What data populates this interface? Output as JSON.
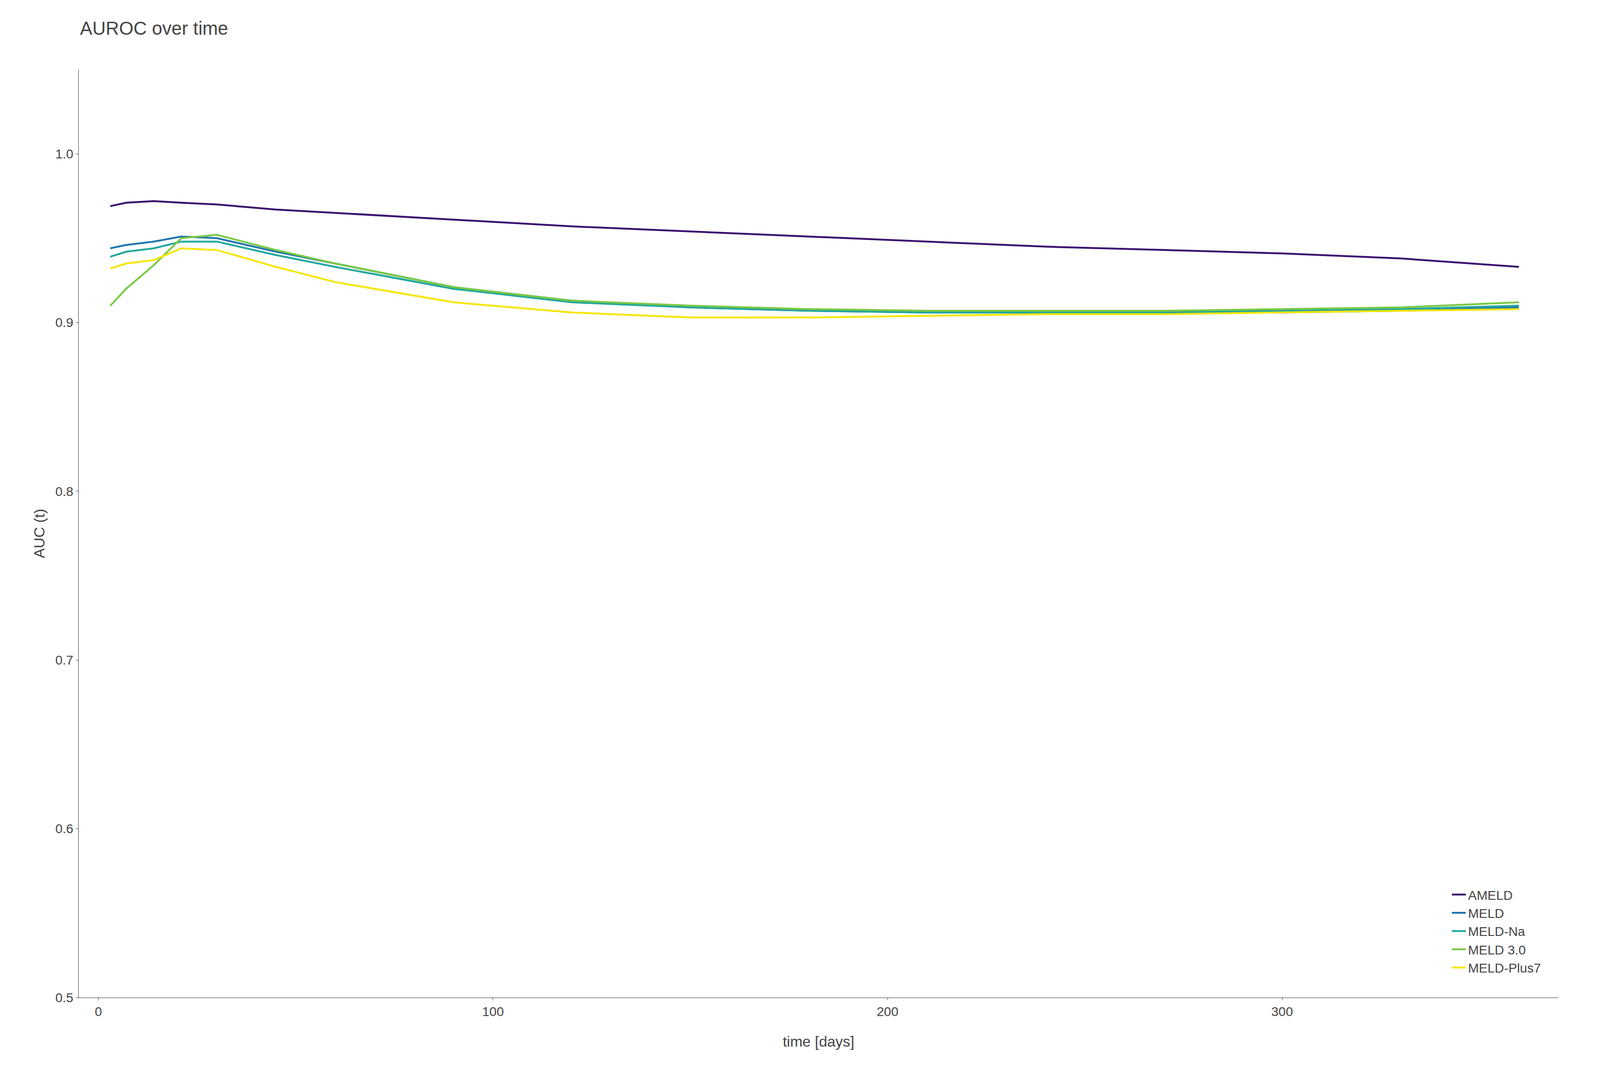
{
  "chart_data": {
    "type": "line",
    "title": "AUROC over time",
    "xlabel": "time [days]",
    "ylabel": "AUC (t)",
    "xlim": [
      -5,
      370
    ],
    "ylim": [
      0.5,
      1.05
    ],
    "xticks": [
      0,
      100,
      200,
      300
    ],
    "yticks": [
      0.5,
      0.6,
      0.7,
      0.8,
      0.9,
      {
        "value": 1.0,
        "label": "1.0"
      }
    ],
    "grid": false,
    "legend": "lower right",
    "x": [
      3,
      7,
      14,
      21,
      30,
      45,
      60,
      90,
      120,
      150,
      180,
      210,
      240,
      270,
      300,
      330,
      360
    ],
    "series": [
      {
        "name": "AMELD",
        "color": "#3b0f6f",
        "values": [
          0.969,
          0.971,
          0.972,
          0.971,
          0.97,
          0.967,
          0.965,
          0.961,
          0.957,
          0.954,
          0.951,
          0.948,
          0.945,
          0.943,
          0.941,
          0.938,
          0.933
        ]
      },
      {
        "name": "MELD",
        "color": "#2176ae",
        "values": [
          0.944,
          0.946,
          0.948,
          0.951,
          0.95,
          0.942,
          0.935,
          0.921,
          0.913,
          0.909,
          0.907,
          0.906,
          0.906,
          0.906,
          0.906,
          0.907,
          0.909
        ]
      },
      {
        "name": "MELD-Na",
        "color": "#21a79e",
        "values": [
          0.939,
          0.942,
          0.944,
          0.948,
          0.948,
          0.94,
          0.933,
          0.92,
          0.912,
          0.909,
          0.907,
          0.906,
          0.906,
          0.906,
          0.907,
          0.908,
          0.91
        ]
      },
      {
        "name": "MELD 3.0",
        "color": "#7ac943",
        "values": [
          0.91,
          0.92,
          0.934,
          0.95,
          0.952,
          0.943,
          0.935,
          0.921,
          0.913,
          0.91,
          0.908,
          0.907,
          0.907,
          0.907,
          0.908,
          0.909,
          0.912
        ]
      },
      {
        "name": "MELD-Plus7",
        "color": "#f5e600",
        "values": [
          0.932,
          0.935,
          0.937,
          0.944,
          0.943,
          0.933,
          0.924,
          0.912,
          0.906,
          0.903,
          0.903,
          0.904,
          0.905,
          0.905,
          0.906,
          0.907,
          0.908
        ]
      }
    ]
  }
}
